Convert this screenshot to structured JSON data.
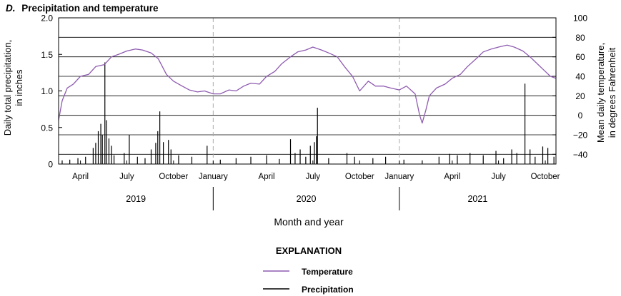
{
  "chart_data": {
    "type": "line",
    "title_letter": "D.",
    "title": "Precipitation and temperature",
    "xlabel": "Month and year",
    "ylabel_left": [
      "Daily total precipitation,",
      "in inches"
    ],
    "ylabel_right": [
      "Mean daily temperature,",
      "in degrees Fahrenheit"
    ],
    "x_range": [
      "2019-03-03",
      "2021-11-05"
    ],
    "ylim_left": [
      0,
      2.0
    ],
    "ylim_right": [
      -50,
      100
    ],
    "left_ticks": [
      "0",
      "0.5",
      "1.0",
      "1.5",
      "2.0"
    ],
    "right_ticks": [
      "−40",
      "−20",
      "0",
      "20",
      "40",
      "60",
      "80",
      "100"
    ],
    "month_ticks": [
      {
        "label": "April",
        "date": "2019-04-15"
      },
      {
        "label": "July",
        "date": "2019-07-15"
      },
      {
        "label": "October",
        "date": "2019-10-15"
      },
      {
        "label": "January",
        "date": "2020-01-01"
      },
      {
        "label": "April",
        "date": "2020-04-15"
      },
      {
        "label": "July",
        "date": "2020-07-15"
      },
      {
        "label": "October",
        "date": "2020-10-15"
      },
      {
        "label": "January",
        "date": "2021-01-01"
      },
      {
        "label": "April",
        "date": "2021-04-15"
      },
      {
        "label": "July",
        "date": "2021-07-15"
      },
      {
        "label": "October",
        "date": "2021-10-15"
      }
    ],
    "years": [
      "2019",
      "2020",
      "2021"
    ],
    "series": [
      {
        "name": "Temperature",
        "color": "#8e5bb0",
        "axis": "right",
        "points": [
          [
            "2019-03-03",
            -5
          ],
          [
            "2019-03-10",
            15
          ],
          [
            "2019-03-20",
            28
          ],
          [
            "2019-04-01",
            32
          ],
          [
            "2019-04-15",
            40
          ],
          [
            "2019-05-01",
            42
          ],
          [
            "2019-05-15",
            50
          ],
          [
            "2019-06-01",
            52
          ],
          [
            "2019-06-15",
            60
          ],
          [
            "2019-07-01",
            63
          ],
          [
            "2019-07-15",
            66
          ],
          [
            "2019-08-01",
            68
          ],
          [
            "2019-08-15",
            67
          ],
          [
            "2019-09-01",
            64
          ],
          [
            "2019-09-15",
            58
          ],
          [
            "2019-10-01",
            42
          ],
          [
            "2019-10-15",
            35
          ],
          [
            "2019-11-01",
            30
          ],
          [
            "2019-11-15",
            26
          ],
          [
            "2019-12-01",
            24
          ],
          [
            "2019-12-15",
            25
          ],
          [
            "2020-01-01",
            22
          ],
          [
            "2020-01-15",
            22
          ],
          [
            "2020-02-01",
            26
          ],
          [
            "2020-02-15",
            25
          ],
          [
            "2020-03-01",
            30
          ],
          [
            "2020-03-15",
            33
          ],
          [
            "2020-04-01",
            32
          ],
          [
            "2020-04-15",
            40
          ],
          [
            "2020-05-01",
            45
          ],
          [
            "2020-05-15",
            53
          ],
          [
            "2020-06-01",
            60
          ],
          [
            "2020-06-15",
            65
          ],
          [
            "2020-07-01",
            67
          ],
          [
            "2020-07-15",
            70
          ],
          [
            "2020-08-01",
            67
          ],
          [
            "2020-08-15",
            64
          ],
          [
            "2020-09-01",
            60
          ],
          [
            "2020-09-15",
            50
          ],
          [
            "2020-10-01",
            40
          ],
          [
            "2020-10-15",
            25
          ],
          [
            "2020-11-01",
            35
          ],
          [
            "2020-11-15",
            30
          ],
          [
            "2020-12-01",
            30
          ],
          [
            "2020-12-15",
            28
          ],
          [
            "2021-01-01",
            26
          ],
          [
            "2021-01-15",
            30
          ],
          [
            "2021-02-01",
            22
          ],
          [
            "2021-02-10",
            0
          ],
          [
            "2021-02-15",
            -8
          ],
          [
            "2021-02-22",
            5
          ],
          [
            "2021-03-01",
            20
          ],
          [
            "2021-03-15",
            28
          ],
          [
            "2021-04-01",
            32
          ],
          [
            "2021-04-15",
            38
          ],
          [
            "2021-05-01",
            42
          ],
          [
            "2021-05-15",
            50
          ],
          [
            "2021-06-01",
            58
          ],
          [
            "2021-06-15",
            65
          ],
          [
            "2021-07-01",
            68
          ],
          [
            "2021-07-15",
            70
          ],
          [
            "2021-08-01",
            72
          ],
          [
            "2021-08-15",
            70
          ],
          [
            "2021-09-01",
            66
          ],
          [
            "2021-09-15",
            60
          ],
          [
            "2021-10-01",
            52
          ],
          [
            "2021-10-15",
            45
          ],
          [
            "2021-10-25",
            40
          ],
          [
            "2021-11-05",
            38
          ]
        ]
      },
      {
        "name": "Precipitation",
        "color": "#000000",
        "axis": "left",
        "points": [
          [
            "2019-03-10",
            0.05
          ],
          [
            "2019-03-25",
            0.06
          ],
          [
            "2019-04-10",
            0.08
          ],
          [
            "2019-04-25",
            0.1
          ],
          [
            "2019-05-10",
            0.22
          ],
          [
            "2019-05-15",
            0.29
          ],
          [
            "2019-05-20",
            0.45
          ],
          [
            "2019-05-25",
            0.55
          ],
          [
            "2019-05-28",
            0.4
          ],
          [
            "2019-06-02",
            1.39
          ],
          [
            "2019-06-05",
            0.6
          ],
          [
            "2019-06-10",
            0.35
          ],
          [
            "2019-06-15",
            0.25
          ],
          [
            "2019-06-20",
            0.12
          ],
          [
            "2019-07-10",
            0.15
          ],
          [
            "2019-07-20",
            0.4
          ],
          [
            "2019-08-05",
            0.1
          ],
          [
            "2019-08-20",
            0.08
          ],
          [
            "2019-09-01",
            0.2
          ],
          [
            "2019-09-10",
            0.29
          ],
          [
            "2019-09-14",
            0.45
          ],
          [
            "2019-09-18",
            0.72
          ],
          [
            "2019-09-25",
            0.3
          ],
          [
            "2019-10-05",
            0.33
          ],
          [
            "2019-10-10",
            0.2
          ],
          [
            "2019-10-25",
            0.12
          ],
          [
            "2019-11-20",
            0.1
          ],
          [
            "2019-12-20",
            0.25
          ],
          [
            "2020-01-15",
            0.06
          ],
          [
            "2020-02-15",
            0.08
          ],
          [
            "2020-03-15",
            0.1
          ],
          [
            "2020-04-15",
            0.12
          ],
          [
            "2020-05-10",
            0.07
          ],
          [
            "2020-06-01",
            0.34
          ],
          [
            "2020-06-10",
            0.15
          ],
          [
            "2020-06-20",
            0.2
          ],
          [
            "2020-07-01",
            0.1
          ],
          [
            "2020-07-10",
            0.25
          ],
          [
            "2020-07-18",
            0.3
          ],
          [
            "2020-07-22",
            0.38
          ],
          [
            "2020-07-24",
            0.77
          ],
          [
            "2020-08-15",
            0.08
          ],
          [
            "2020-09-20",
            0.15
          ],
          [
            "2020-10-05",
            0.1
          ],
          [
            "2020-11-10",
            0.08
          ],
          [
            "2020-12-05",
            0.1
          ],
          [
            "2021-01-10",
            0.06
          ],
          [
            "2021-02-15",
            0.05
          ],
          [
            "2021-03-20",
            0.1
          ],
          [
            "2021-04-10",
            0.14
          ],
          [
            "2021-04-25",
            0.12
          ],
          [
            "2021-05-20",
            0.15
          ],
          [
            "2021-06-15",
            0.12
          ],
          [
            "2021-07-10",
            0.18
          ],
          [
            "2021-07-25",
            0.08
          ],
          [
            "2021-08-10",
            0.2
          ],
          [
            "2021-08-20",
            0.15
          ],
          [
            "2021-09-05",
            1.1
          ],
          [
            "2021-09-15",
            0.2
          ],
          [
            "2021-09-25",
            0.1
          ],
          [
            "2021-10-10",
            0.24
          ],
          [
            "2021-10-20",
            0.22
          ],
          [
            "2021-11-01",
            0.1
          ]
        ]
      }
    ],
    "grid": "horizontal lines at right-axis tick values",
    "legend": {
      "title": "EXPLANATION",
      "position": "bottom-center"
    }
  }
}
